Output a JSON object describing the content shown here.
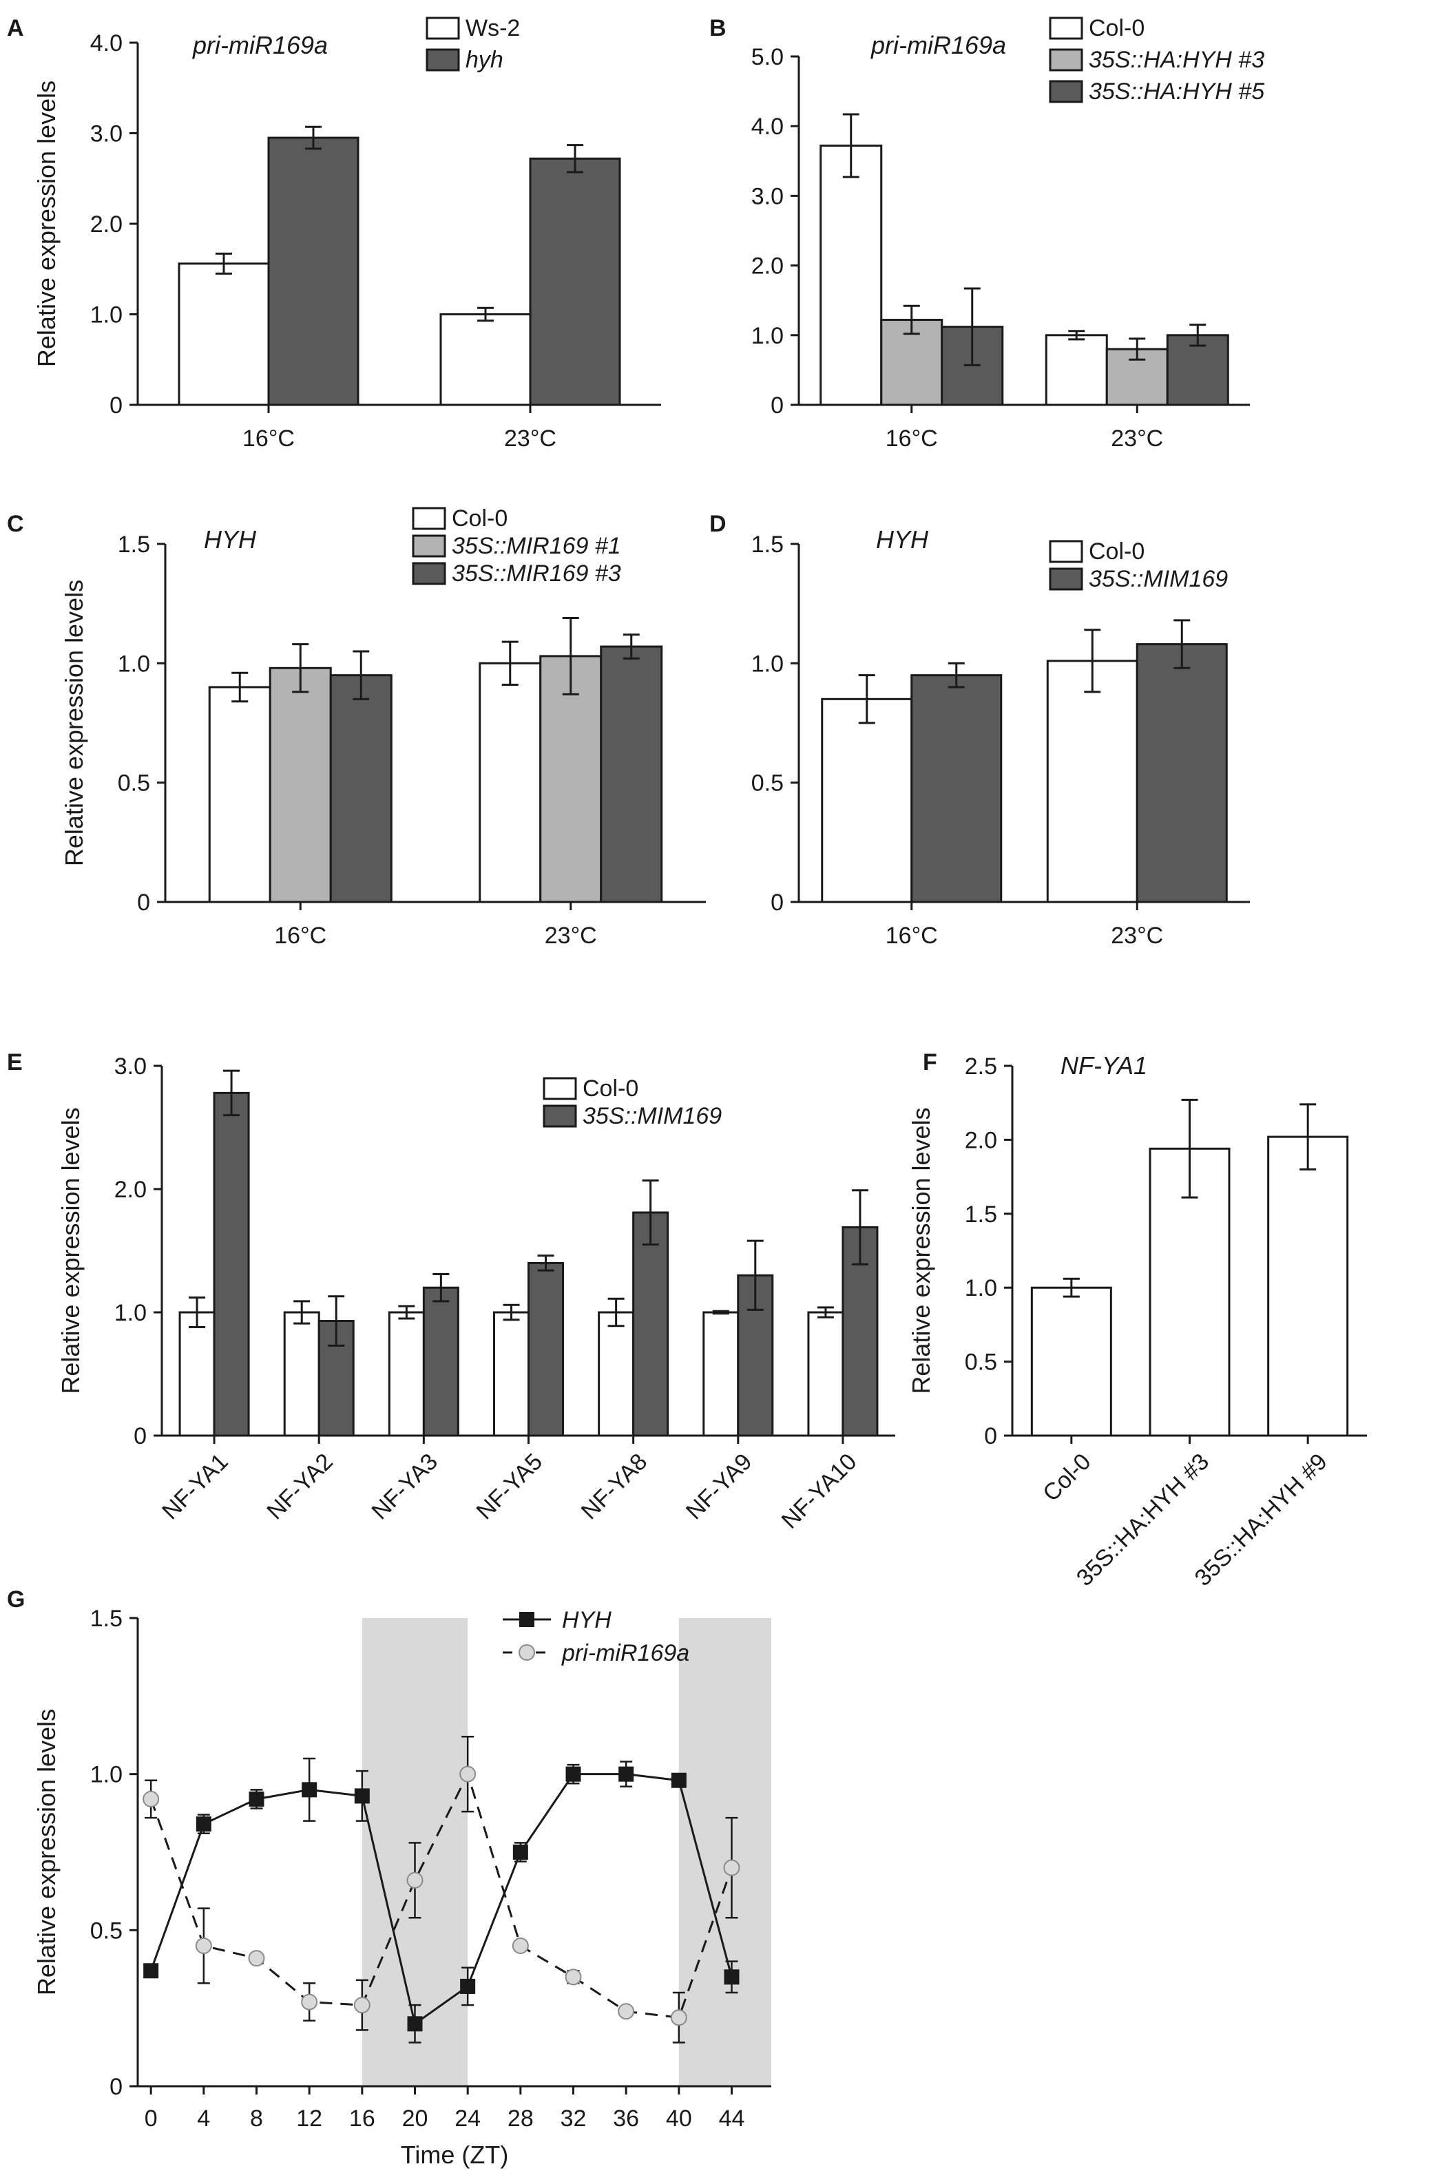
{
  "colors": {
    "white": "#ffffff",
    "light": "#b3b3b3",
    "dark": "#5a5a5a",
    "shade": "#d9d9d9",
    "line": "#1a1a1a"
  },
  "chart_data": [
    {
      "id": "A",
      "panel_label": "A",
      "type": "bar",
      "annotation": "pri-miR169a",
      "ylabel": "Relative expression levels",
      "categories": [
        "16°C",
        "23°C"
      ],
      "ylim": [
        0,
        4
      ],
      "yticks": [
        0,
        1,
        2,
        3,
        4
      ],
      "ytick_labels": [
        "0",
        "1.0",
        "2.0",
        "3.0",
        "4.0"
      ],
      "series": [
        {
          "name": "Ws-2",
          "italic": false,
          "color": "white",
          "values": [
            1.56,
            1.0
          ],
          "errors": [
            0.11,
            0.07
          ]
        },
        {
          "name": "hyh",
          "italic": true,
          "color": "dark",
          "values": [
            2.95,
            2.72
          ],
          "errors": [
            0.12,
            0.15
          ]
        }
      ]
    },
    {
      "id": "B",
      "panel_label": "B",
      "type": "bar",
      "annotation": "pri-miR169a",
      "ylabel": "",
      "categories": [
        "16°C",
        "23°C"
      ],
      "ylim": [
        0,
        5
      ],
      "yticks": [
        0,
        1,
        2,
        3,
        4,
        5
      ],
      "ytick_labels": [
        "0",
        "1.0",
        "2.0",
        "3.0",
        "4.0",
        "5.0"
      ],
      "series": [
        {
          "name": "Col-0",
          "italic": false,
          "color": "white",
          "values": [
            3.72,
            1.0
          ],
          "errors": [
            0.45,
            0.06
          ]
        },
        {
          "name": "35S::HA:HYH #3",
          "italic": true,
          "color": "light",
          "values": [
            1.22,
            0.8
          ],
          "errors": [
            0.2,
            0.15
          ]
        },
        {
          "name": "35S::HA:HYH #5",
          "italic": true,
          "color": "dark",
          "values": [
            1.12,
            1.0
          ],
          "errors": [
            0.55,
            0.15
          ]
        }
      ]
    },
    {
      "id": "C",
      "panel_label": "C",
      "type": "bar",
      "annotation": "HYH",
      "ylabel": "Relative expression levels",
      "categories": [
        "16°C",
        "23°C"
      ],
      "ylim": [
        0,
        1.5
      ],
      "yticks": [
        0,
        0.5,
        1.0,
        1.5
      ],
      "ytick_labels": [
        "0",
        "0.5",
        "1.0",
        "1.5"
      ],
      "series": [
        {
          "name": "Col-0",
          "italic": false,
          "color": "white",
          "values": [
            0.9,
            1.0
          ],
          "errors": [
            0.06,
            0.09
          ]
        },
        {
          "name": "35S::MIR169 #1",
          "italic": true,
          "color": "light",
          "values": [
            0.98,
            1.03
          ],
          "errors": [
            0.1,
            0.16
          ]
        },
        {
          "name": "35S::MIR169 #3",
          "italic": true,
          "color": "dark",
          "values": [
            0.95,
            1.07
          ],
          "errors": [
            0.1,
            0.05
          ]
        }
      ]
    },
    {
      "id": "D",
      "panel_label": "D",
      "type": "bar",
      "annotation": "HYH",
      "ylabel": "",
      "categories": [
        "16°C",
        "23°C"
      ],
      "ylim": [
        0,
        1.5
      ],
      "yticks": [
        0,
        0.5,
        1.0,
        1.5
      ],
      "ytick_labels": [
        "0",
        "0.5",
        "1.0",
        "1.5"
      ],
      "series": [
        {
          "name": "Col-0",
          "italic": false,
          "color": "white",
          "values": [
            0.85,
            1.01
          ],
          "errors": [
            0.1,
            0.13
          ]
        },
        {
          "name": "35S::MIM169",
          "italic": true,
          "color": "dark",
          "values": [
            0.95,
            1.08
          ],
          "errors": [
            0.05,
            0.1
          ]
        }
      ]
    },
    {
      "id": "E",
      "panel_label": "E",
      "type": "bar",
      "annotation": "",
      "ylabel": "Relative expression levels",
      "categories": [
        "NF-YA1",
        "NF-YA2",
        "NF-YA3",
        "NF-YA5",
        "NF-YA8",
        "NF-YA9",
        "NF-YA10"
      ],
      "ylim": [
        0,
        3
      ],
      "yticks": [
        0,
        1,
        2,
        3
      ],
      "ytick_labels": [
        "0",
        "1.0",
        "2.0",
        "3.0"
      ],
      "series": [
        {
          "name": "Col-0",
          "italic": false,
          "color": "white",
          "values": [
            1.0,
            1.0,
            1.0,
            1.0,
            1.0,
            1.0,
            1.0
          ],
          "errors": [
            0.12,
            0.09,
            0.05,
            0.06,
            0.11,
            0.01,
            0.04
          ]
        },
        {
          "name": "35S::MIM169",
          "italic": true,
          "color": "dark",
          "values": [
            2.78,
            0.93,
            1.2,
            1.4,
            1.81,
            1.3,
            1.69
          ],
          "errors": [
            0.18,
            0.2,
            0.11,
            0.06,
            0.26,
            0.28,
            0.3
          ]
        }
      ]
    },
    {
      "id": "F",
      "panel_label": "F",
      "type": "bar",
      "annotation": "NF-YA1",
      "ylabel": "Relative expression levels",
      "categories": [
        "Col-0",
        "35S::HA:HYH #3",
        "35S::HA:HYH #9"
      ],
      "ylim": [
        0,
        2.5
      ],
      "yticks": [
        0,
        0.5,
        1,
        1.5,
        2,
        2.5
      ],
      "ytick_labels": [
        "0",
        "0.5",
        "1.0",
        "1.5",
        "2.0",
        "2.5"
      ],
      "series": [
        {
          "name": "",
          "italic": false,
          "color": "white",
          "values": [
            1.0,
            1.94,
            2.02
          ],
          "errors": [
            0.06,
            0.33,
            0.22
          ]
        }
      ]
    },
    {
      "id": "G",
      "panel_label": "G",
      "type": "line",
      "xlabel": "Time (ZT)",
      "ylabel": "Relative expression levels",
      "x": [
        0,
        4,
        8,
        12,
        16,
        20,
        24,
        28,
        32,
        36,
        40,
        44
      ],
      "xlim": [
        -1,
        47
      ],
      "ylim": [
        0,
        1.5
      ],
      "yticks": [
        0,
        0.5,
        1.0,
        1.5
      ],
      "ytick_labels": [
        "0",
        "0.5",
        "1.0",
        "1.5"
      ],
      "xtick_labels": [
        "0",
        "4",
        "8",
        "12",
        "16",
        "20",
        "24",
        "28",
        "32",
        "36",
        "40",
        "44"
      ],
      "dark_periods": [
        [
          16,
          24
        ],
        [
          40,
          47
        ]
      ],
      "series": [
        {
          "name": "HYH",
          "style": "solid-square",
          "values": [
            0.37,
            0.84,
            0.92,
            0.95,
            0.93,
            0.2,
            0.32,
            0.75,
            1.0,
            1.0,
            0.98,
            0.35
          ],
          "errors": [
            0.0,
            0.03,
            0.03,
            0.1,
            0.08,
            0.06,
            0.06,
            0.03,
            0.03,
            0.04,
            0.02,
            0.05
          ]
        },
        {
          "name": "pri-miR169a",
          "style": "dashed-circle",
          "values": [
            0.92,
            0.45,
            0.41,
            0.27,
            0.26,
            0.66,
            1.0,
            0.45,
            0.35,
            0.24,
            0.22,
            0.7
          ],
          "errors": [
            0.06,
            0.12,
            0.01,
            0.06,
            0.08,
            0.12,
            0.12,
            0.01,
            0.02,
            0.0,
            0.08,
            0.16
          ]
        }
      ]
    }
  ]
}
